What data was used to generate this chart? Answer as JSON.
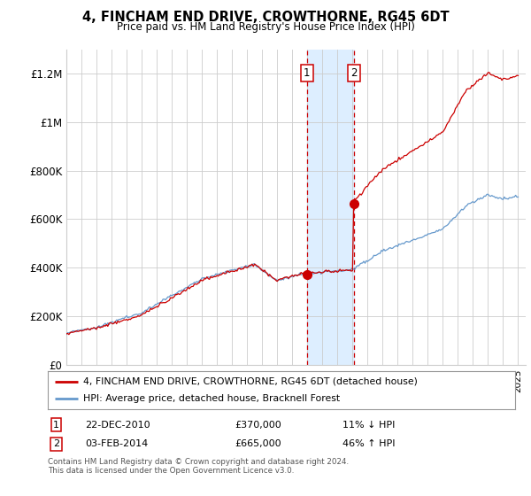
{
  "title": "4, FINCHAM END DRIVE, CROWTHORNE, RG45 6DT",
  "subtitle": "Price paid vs. HM Land Registry's House Price Index (HPI)",
  "xlim_start": 1995.0,
  "xlim_end": 2025.5,
  "ylim": [
    0,
    1300000
  ],
  "yticks": [
    0,
    200000,
    400000,
    600000,
    800000,
    1000000,
    1200000
  ],
  "ytick_labels": [
    "£0",
    "£200K",
    "£400K",
    "£600K",
    "£800K",
    "£1M",
    "£1.2M"
  ],
  "transaction1_x": 2010.97,
  "transaction1_y": 370000,
  "transaction2_x": 2014.09,
  "transaction2_y": 665000,
  "shade_start": 2010.97,
  "shade_end": 2014.09,
  "legend_line1": "4, FINCHAM END DRIVE, CROWTHORNE, RG45 6DT (detached house)",
  "legend_line2": "HPI: Average price, detached house, Bracknell Forest",
  "table_row1_num": "1",
  "table_row1_date": "22-DEC-2010",
  "table_row1_price": "£370,000",
  "table_row1_hpi": "11% ↓ HPI",
  "table_row2_num": "2",
  "table_row2_date": "03-FEB-2014",
  "table_row2_price": "£665,000",
  "table_row2_hpi": "46% ↑ HPI",
  "footnote": "Contains HM Land Registry data © Crown copyright and database right 2024.\nThis data is licensed under the Open Government Licence v3.0.",
  "line_color_red": "#cc0000",
  "line_color_blue": "#6699cc",
  "shade_color": "#ddeeff",
  "grid_color": "#cccccc",
  "background_color": "#ffffff"
}
